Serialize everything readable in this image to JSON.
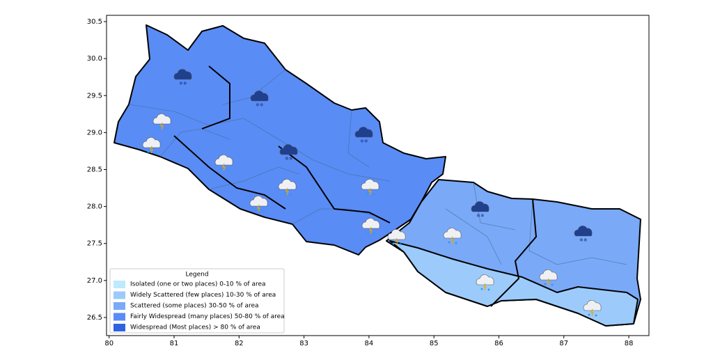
{
  "chart_data": {
    "type": "map",
    "xlim": [
      79.96,
      88.31
    ],
    "ylim": [
      26.255,
      30.585
    ],
    "xticks": [
      80,
      81,
      82,
      83,
      84,
      85,
      86,
      87,
      88
    ],
    "yticks": [
      26.5,
      {
        "value": 27,
        "label": "27.0"
      },
      27.5,
      {
        "value": 28,
        "label": "28.0"
      },
      28.5,
      {
        "value": 29,
        "label": "29.0"
      },
      29.5,
      {
        "value": 30,
        "label": "30.0"
      },
      30.5
    ],
    "legend": {
      "title": "Legend",
      "entries": [
        {
          "label": "Isolated (one or two places)  0-10 % of area",
          "color": "#bdeafd"
        },
        {
          "label": "Widely Scattered (few places)  10-30 % of area",
          "color": "#9ccbfb"
        },
        {
          "label": "Scattered (some places)  30-50 % of area",
          "color": "#7aa9f7"
        },
        {
          "label": "Fairly Widespread (many places)  50-80 % of area",
          "color": "#5a8cf5"
        },
        {
          "label": "Widespread (Most places) > 80 % of area",
          "color": "#2f63e0"
        }
      ]
    }
  }
}
